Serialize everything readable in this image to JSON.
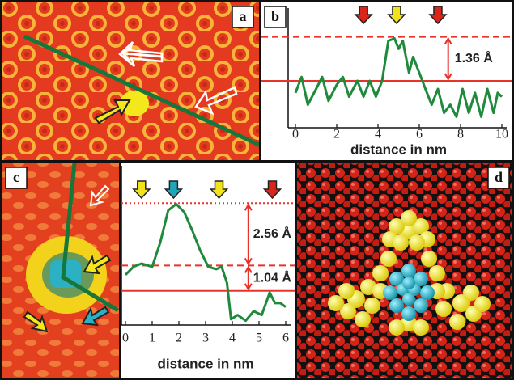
{
  "panel_labels": [
    "a",
    "b",
    "c",
    "d"
  ],
  "chart_data": [
    {
      "type": "line",
      "x": [
        0,
        0.3,
        0.6,
        1,
        1.3,
        1.6,
        2,
        2.3,
        2.6,
        3,
        3.3,
        3.6,
        3.9,
        4.2,
        4.5,
        4.8,
        5,
        5.2,
        5.5,
        5.7,
        6,
        6.3,
        6.6,
        6.9,
        7.2,
        7.5,
        7.8,
        8.1,
        8.4,
        8.7,
        9,
        9.3,
        9.6,
        9.8,
        10
      ],
      "values": [
        -0.37,
        0.12,
        -0.74,
        -0.25,
        0.12,
        -0.62,
        -0.12,
        0.12,
        -0.49,
        0,
        -0.49,
        0,
        -0.49,
        0,
        1.24,
        1.31,
        0.99,
        1.24,
        0.25,
        0.74,
        0.25,
        -0.25,
        -0.74,
        -0.25,
        -0.99,
        -0.74,
        -1.11,
        -0.25,
        -0.99,
        -0.37,
        -1.11,
        -0.25,
        -0.99,
        -0.37,
        -0.49
      ],
      "color": "#1f8a3c",
      "xlim": [
        0,
        10
      ],
      "xticks": [
        0,
        2,
        4,
        6,
        8,
        10
      ],
      "ylim": [
        -1.45,
        2.0
      ],
      "xlabel": "distance in nm",
      "hlines": [
        {
          "value": 0,
          "style": "solid",
          "color": "#e8332a"
        },
        {
          "value": 1.36,
          "style": "dashed",
          "color": "#e8332a"
        }
      ],
      "markers": [
        {
          "x": 3.3,
          "color": "#d9261c"
        },
        {
          "x": 4.9,
          "color": "#f2e21b"
        },
        {
          "x": 6.9,
          "color": "#d9261c"
        }
      ],
      "annotations": [
        {
          "label": "1.36 Å",
          "from": 0,
          "to": 1.36,
          "x": 7.4
        }
      ]
    },
    {
      "type": "line",
      "x": [
        0,
        0.3,
        0.6,
        1,
        1.3,
        1.6,
        1.9,
        2.2,
        2.5,
        2.8,
        3.1,
        3.4,
        3.6,
        3.8,
        3.95,
        4.2,
        4.5,
        4.8,
        5.1,
        5.4,
        5.6,
        5.8,
        6
      ],
      "values": [
        0.66,
        0.99,
        1.12,
        0.99,
        1.98,
        3.3,
        3.56,
        3.23,
        2.48,
        1.65,
        0.99,
        0.89,
        0.99,
        0.33,
        -1.16,
        -0.99,
        -1.22,
        -0.83,
        -0.99,
        -0.07,
        -0.5,
        -0.5,
        -0.66
      ],
      "color": "#1f8a3c",
      "xlim": [
        0,
        6
      ],
      "xticks": [
        0,
        1,
        2,
        3,
        4,
        5,
        6
      ],
      "ylim": [
        -1.4,
        4.8
      ],
      "xlabel": "distance in nm",
      "hlines": [
        {
          "value": 0,
          "style": "solid",
          "color": "#e8332a"
        },
        {
          "value": 1.04,
          "style": "dashed",
          "color": "#e8332a"
        },
        {
          "value": 3.6,
          "style": "dotted",
          "color": "#e8332a"
        }
      ],
      "markers": [
        {
          "x": 0.6,
          "color": "#f2e21b"
        },
        {
          "x": 1.8,
          "color": "#1fa6b8"
        },
        {
          "x": 3.5,
          "color": "#f2e21b"
        },
        {
          "x": 5.5,
          "color": "#d9261c"
        }
      ],
      "annotations": [
        {
          "label": "2.56 Å",
          "from": 1.04,
          "to": 3.6,
          "x": 4.6
        },
        {
          "label": "1.04 Å",
          "from": 0,
          "to": 1.04,
          "x": 4.6
        }
      ]
    }
  ]
}
